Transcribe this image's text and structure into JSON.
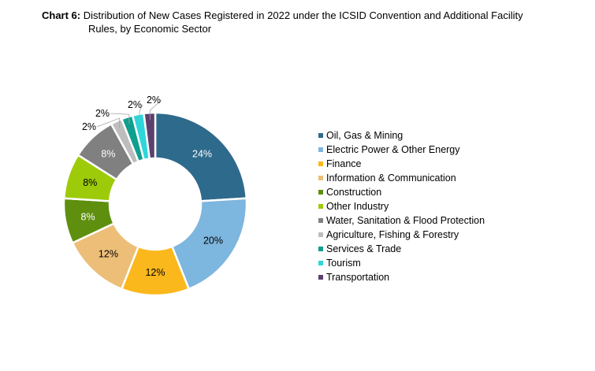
{
  "chart_data": {
    "type": "pie",
    "donut": true,
    "title_prefix": "Chart 6:",
    "title_line1": "Distribution of New Cases Registered in 2022 under the ICSID Convention and Additional Facility",
    "title_line2": "Rules, by Economic Sector",
    "legend_position": "right",
    "slices": [
      {
        "name": "Oil, Gas & Mining",
        "value": 24,
        "label": "24%",
        "color": "#2E6A8C",
        "label_color": "#ffffff"
      },
      {
        "name": "Electric Power & Other Energy",
        "value": 20,
        "label": "20%",
        "color": "#7DB6DE",
        "label_color": "#000000"
      },
      {
        "name": "Finance",
        "value": 12,
        "label": "12%",
        "color": "#FBB81C",
        "label_color": "#000000"
      },
      {
        "name": "Information & Communication",
        "value": 12,
        "label": "12%",
        "color": "#EDBE78",
        "label_color": "#000000"
      },
      {
        "name": "Construction",
        "value": 8,
        "label": "8%",
        "color": "#5E8F0E",
        "label_color": "#ffffff"
      },
      {
        "name": "Other Industry",
        "value": 8,
        "label": "8%",
        "color": "#9DCB0A",
        "label_color": "#000000"
      },
      {
        "name": "Water, Sanitation & Flood Protection",
        "value": 8,
        "label": "8%",
        "color": "#808080",
        "label_color": "#ffffff"
      },
      {
        "name": "Agriculture, Fishing & Forestry",
        "value": 2,
        "label": "2%",
        "color": "#BDBDBD",
        "label_color": "#000000"
      },
      {
        "name": "Services & Trade",
        "value": 2,
        "label": "2%",
        "color": "#109E8E",
        "label_color": "#000000"
      },
      {
        "name": "Tourism",
        "value": 2,
        "label": "2%",
        "color": "#2ED6DB",
        "label_color": "#000000"
      },
      {
        "name": "Transportation",
        "value": 2,
        "label": "2%",
        "color": "#5B3F6E",
        "label_color": "#000000"
      }
    ]
  }
}
